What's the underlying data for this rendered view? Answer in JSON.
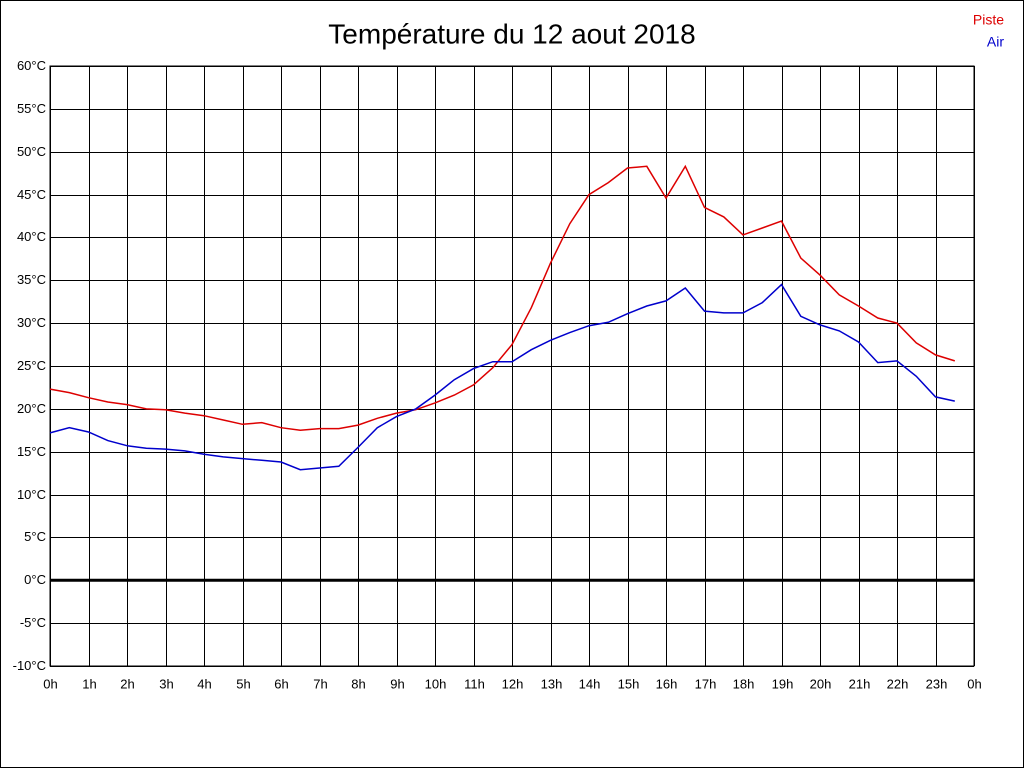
{
  "chart_data": {
    "type": "line",
    "title": "Température du 12 aout 2018",
    "x": [
      0,
      0.5,
      1,
      1.5,
      2,
      2.5,
      3,
      3.5,
      4,
      4.5,
      5,
      5.5,
      6,
      6.5,
      7,
      7.5,
      8,
      8.5,
      9,
      9.5,
      10,
      10.5,
      11,
      11.5,
      12,
      12.5,
      13,
      13.5,
      14,
      14.5,
      15,
      15.5,
      16,
      16.5,
      17,
      17.5,
      18,
      18.5,
      19,
      19.5,
      20,
      20.5,
      21,
      21.5,
      22,
      22.5,
      23,
      23.5
    ],
    "series": [
      {
        "name": "Piste",
        "color": "#dd0000",
        "values": [
          22.3,
          21.9,
          21.3,
          20.8,
          20.5,
          20.0,
          19.9,
          19.5,
          19.2,
          18.7,
          18.2,
          18.4,
          17.8,
          17.5,
          17.7,
          17.7,
          18.1,
          18.9,
          19.5,
          19.9,
          20.7,
          21.6,
          22.8,
          24.8,
          27.5,
          31.8,
          37.0,
          41.6,
          45.0,
          46.4,
          48.1,
          48.3,
          44.6,
          48.3,
          43.5,
          42.4,
          40.3,
          41.1,
          41.9,
          37.6,
          35.6,
          33.3,
          32.0,
          30.6,
          30.0,
          27.7,
          26.3,
          25.6
        ]
      },
      {
        "name": "Air",
        "color": "#0000cc",
        "values": [
          17.2,
          17.8,
          17.3,
          16.3,
          15.7,
          15.4,
          15.3,
          15.1,
          14.7,
          14.4,
          14.2,
          14.0,
          13.8,
          12.9,
          13.1,
          13.3,
          15.5,
          17.8,
          19.1,
          20.0,
          21.6,
          23.4,
          24.7,
          25.5,
          25.5,
          26.9,
          28.0,
          28.9,
          29.7,
          30.1,
          31.1,
          32.0,
          32.6,
          34.1,
          31.4,
          31.2,
          31.2,
          32.4,
          34.5,
          30.8,
          29.8,
          29.1,
          27.8,
          25.4,
          25.6,
          23.8,
          21.4,
          20.9
        ]
      }
    ],
    "xlim": [
      0,
      24
    ],
    "xticks": [
      {
        "value": 0,
        "label": "0h"
      },
      {
        "value": 1,
        "label": "1h"
      },
      {
        "value": 2,
        "label": "2h"
      },
      {
        "value": 3,
        "label": "3h"
      },
      {
        "value": 4,
        "label": "4h"
      },
      {
        "value": 5,
        "label": "5h"
      },
      {
        "value": 6,
        "label": "6h"
      },
      {
        "value": 7,
        "label": "7h"
      },
      {
        "value": 8,
        "label": "8h"
      },
      {
        "value": 9,
        "label": "9h"
      },
      {
        "value": 10,
        "label": "10h"
      },
      {
        "value": 11,
        "label": "11h"
      },
      {
        "value": 12,
        "label": "12h"
      },
      {
        "value": 13,
        "label": "13h"
      },
      {
        "value": 14,
        "label": "14h"
      },
      {
        "value": 15,
        "label": "15h"
      },
      {
        "value": 16,
        "label": "16h"
      },
      {
        "value": 17,
        "label": "17h"
      },
      {
        "value": 18,
        "label": "18h"
      },
      {
        "value": 19,
        "label": "19h"
      },
      {
        "value": 20,
        "label": "20h"
      },
      {
        "value": 21,
        "label": "21h"
      },
      {
        "value": 22,
        "label": "22h"
      },
      {
        "value": 23,
        "label": "23h"
      },
      {
        "value": 24,
        "label": "0h"
      }
    ],
    "ylim": [
      -10,
      60
    ],
    "yticks": [
      {
        "value": -10,
        "label": "-10°C"
      },
      {
        "value": -5,
        "label": "-5°C"
      },
      {
        "value": 0,
        "label": "0°C"
      },
      {
        "value": 5,
        "label": "5°C"
      },
      {
        "value": 10,
        "label": "10°C"
      },
      {
        "value": 15,
        "label": "15°C"
      },
      {
        "value": 20,
        "label": "20°C"
      },
      {
        "value": 25,
        "label": "25°C"
      },
      {
        "value": 30,
        "label": "30°C"
      },
      {
        "value": 35,
        "label": "35°C"
      },
      {
        "value": 40,
        "label": "40°C"
      },
      {
        "value": 45,
        "label": "45°C"
      },
      {
        "value": 50,
        "label": "50°C"
      },
      {
        "value": 55,
        "label": "55°C"
      },
      {
        "value": 60,
        "label": "60°C"
      }
    ],
    "grid": true,
    "zero_line": true,
    "legend": "top-right"
  }
}
